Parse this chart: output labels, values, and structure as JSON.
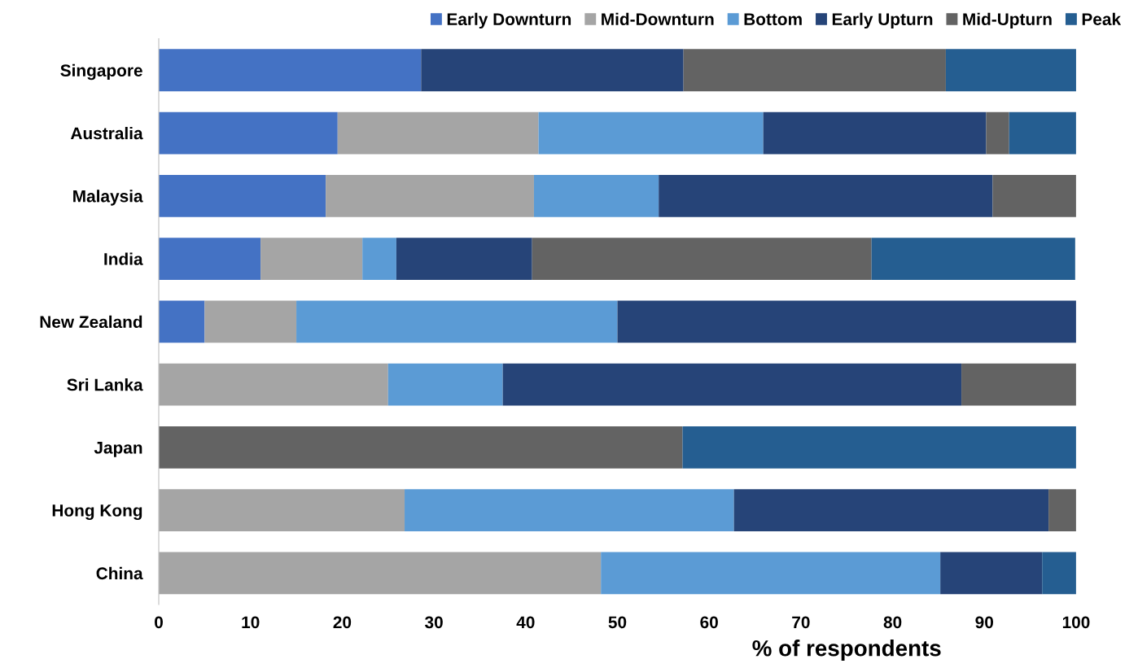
{
  "chart_data": {
    "type": "bar",
    "orientation": "horizontal",
    "stacked": true,
    "xlabel": "% of respondents",
    "categories": [
      "Singapore",
      "Australia",
      "Malaysia",
      "India",
      "New Zealand",
      "Sri Lanka",
      "Japan",
      "Hong Kong",
      "China"
    ],
    "series": [
      {
        "name": "Early Downturn",
        "color": "#4472c4",
        "values": [
          28.6,
          19.5,
          18.2,
          11.1,
          5,
          0,
          0,
          0,
          0
        ]
      },
      {
        "name": "Mid-Downturn",
        "color": "#a5a5a5",
        "values": [
          0,
          21.9,
          22.7,
          11.1,
          10,
          25,
          0,
          26.8,
          48.2
        ]
      },
      {
        "name": "Bottom",
        "color": "#5b9bd5",
        "values": [
          0,
          24.5,
          13.6,
          3.7,
          35,
          12.5,
          0,
          35.9,
          37.0
        ]
      },
      {
        "name": "Early Upturn",
        "color": "#264478",
        "values": [
          28.6,
          24.3,
          36.4,
          14.8,
          50,
          50,
          0,
          34.3,
          11.1
        ]
      },
      {
        "name": "Mid-Upturn",
        "color": "#636363",
        "values": [
          28.6,
          2.5,
          9.1,
          37.0,
          0,
          12.5,
          57.1,
          3.0,
          0
        ]
      },
      {
        "name": "Peak",
        "color": "#255e91",
        "values": [
          14.3,
          7.3,
          0,
          22.2,
          0,
          0,
          42.9,
          0,
          3.7
        ]
      }
    ],
    "xlim": [
      0,
      100
    ],
    "xticks": [
      0,
      10,
      20,
      30,
      40,
      50,
      60,
      70,
      80,
      90,
      100
    ],
    "grid": false,
    "legend": "top right"
  }
}
